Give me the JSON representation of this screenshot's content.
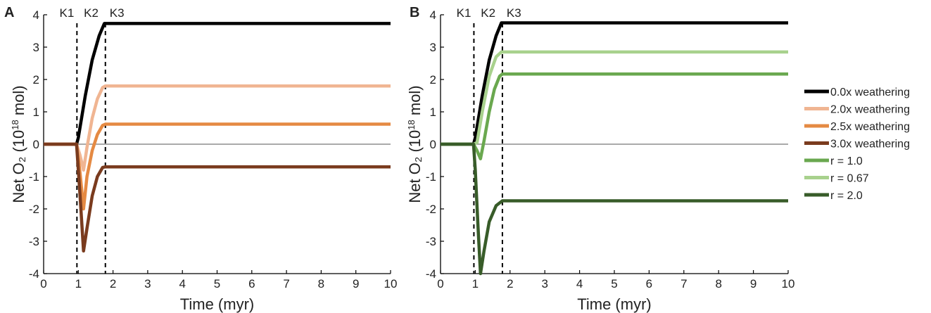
{
  "chart_data": [
    {
      "panel": "A",
      "type": "line",
      "xlabel": "Time (myr)",
      "ylabel_main": "Net O₂ (10",
      "ylabel_sup": "18",
      "ylabel_tail": " mol)",
      "xlim": [
        0,
        10
      ],
      "ylim": [
        -4,
        4
      ],
      "xticks": [
        0,
        1,
        2,
        3,
        4,
        5,
        6,
        7,
        8,
        9,
        10
      ],
      "yticks": [
        -4,
        -3,
        -2,
        -1,
        0,
        1,
        2,
        3,
        4
      ],
      "vlines": [
        {
          "x": 0.96,
          "label": "K1"
        },
        {
          "x": 1.78,
          "label": "K3"
        }
      ],
      "marker_mid_label": "K2",
      "series": [
        {
          "name": "0.0x weathering",
          "color": "#000000",
          "points": [
            [
              0,
              0
            ],
            [
              0.95,
              0
            ],
            [
              1.0,
              0.2
            ],
            [
              1.2,
              1.5
            ],
            [
              1.4,
              2.6
            ],
            [
              1.6,
              3.35
            ],
            [
              1.75,
              3.73
            ],
            [
              10,
              3.73
            ]
          ]
        },
        {
          "name": "2.0x weathering",
          "color": "#f0b592",
          "points": [
            [
              0,
              0
            ],
            [
              0.95,
              0
            ],
            [
              1.05,
              -0.35
            ],
            [
              1.15,
              -0.8
            ],
            [
              1.25,
              -0.1
            ],
            [
              1.4,
              0.8
            ],
            [
              1.55,
              1.4
            ],
            [
              1.7,
              1.75
            ],
            [
              1.78,
              1.8
            ],
            [
              10,
              1.8
            ]
          ]
        },
        {
          "name": "2.5x weathering",
          "color": "#e58a43",
          "points": [
            [
              0,
              0
            ],
            [
              0.95,
              0
            ],
            [
              1.05,
              -0.9
            ],
            [
              1.15,
              -2.0
            ],
            [
              1.25,
              -1.0
            ],
            [
              1.4,
              -0.2
            ],
            [
              1.55,
              0.3
            ],
            [
              1.7,
              0.58
            ],
            [
              1.78,
              0.62
            ],
            [
              10,
              0.62
            ]
          ]
        },
        {
          "name": "3.0x weathering",
          "color": "#7a3b1e",
          "points": [
            [
              0,
              0
            ],
            [
              0.95,
              0
            ],
            [
              1.05,
              -1.6
            ],
            [
              1.15,
              -3.3
            ],
            [
              1.25,
              -2.6
            ],
            [
              1.4,
              -1.6
            ],
            [
              1.55,
              -1.0
            ],
            [
              1.7,
              -0.72
            ],
            [
              1.78,
              -0.7
            ],
            [
              10,
              -0.7
            ]
          ]
        }
      ]
    },
    {
      "panel": "B",
      "type": "line",
      "xlabel": "Time (myr)",
      "ylabel_main": "Net O₂ (10",
      "ylabel_sup": "18",
      "ylabel_tail": " mol)",
      "xlim": [
        0,
        10
      ],
      "ylim": [
        -4,
        4
      ],
      "xticks": [
        0,
        1,
        2,
        3,
        4,
        5,
        6,
        7,
        8,
        9,
        10
      ],
      "yticks": [
        -4,
        -3,
        -2,
        -1,
        0,
        1,
        2,
        3,
        4
      ],
      "vlines": [
        {
          "x": 0.96,
          "label": "K1"
        },
        {
          "x": 1.78,
          "label": "K3"
        }
      ],
      "marker_mid_label": "K2",
      "series": [
        {
          "name": "0.0x weathering",
          "color": "#000000",
          "points": [
            [
              0,
              0
            ],
            [
              0.95,
              0
            ],
            [
              1.0,
              0.2
            ],
            [
              1.2,
              1.5
            ],
            [
              1.4,
              2.6
            ],
            [
              1.6,
              3.35
            ],
            [
              1.75,
              3.75
            ],
            [
              10,
              3.75
            ]
          ]
        },
        {
          "name": "r = 0.67",
          "color": "#a8d18d",
          "points": [
            [
              0,
              0
            ],
            [
              0.95,
              0
            ],
            [
              1.05,
              0.05
            ],
            [
              1.2,
              1.0
            ],
            [
              1.4,
              2.1
            ],
            [
              1.6,
              2.7
            ],
            [
              1.75,
              2.85
            ],
            [
              10,
              2.85
            ]
          ]
        },
        {
          "name": "r = 1.0",
          "color": "#6aa84f",
          "points": [
            [
              0,
              0
            ],
            [
              0.95,
              0
            ],
            [
              1.05,
              -0.2
            ],
            [
              1.15,
              -0.45
            ],
            [
              1.25,
              0.1
            ],
            [
              1.4,
              1.0
            ],
            [
              1.55,
              1.7
            ],
            [
              1.7,
              2.1
            ],
            [
              1.78,
              2.17
            ],
            [
              10,
              2.17
            ]
          ]
        },
        {
          "name": "r = 2.0",
          "color": "#385c29",
          "points": [
            [
              0,
              0
            ],
            [
              0.95,
              0
            ],
            [
              1.0,
              -0.8
            ],
            [
              1.08,
              -2.6
            ],
            [
              1.15,
              -4.0
            ],
            [
              1.25,
              -3.3
            ],
            [
              1.4,
              -2.4
            ],
            [
              1.6,
              -1.9
            ],
            [
              1.78,
              -1.75
            ],
            [
              10,
              -1.75
            ]
          ]
        }
      ]
    }
  ],
  "legend": [
    {
      "label": "0.0x weathering",
      "color": "#000000"
    },
    {
      "label": "2.0x weathering",
      "color": "#f0b592"
    },
    {
      "label": "2.5x weathering",
      "color": "#e58a43"
    },
    {
      "label": "3.0x weathering",
      "color": "#7a3b1e"
    },
    {
      "label": "r = 1.0",
      "color": "#6aa84f"
    },
    {
      "label": "r = 0.67",
      "color": "#a8d18d"
    },
    {
      "label": "r = 2.0",
      "color": "#385c29"
    }
  ]
}
